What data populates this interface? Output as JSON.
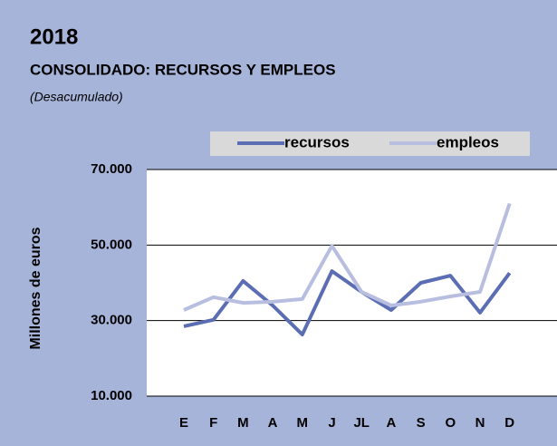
{
  "chart_data": {
    "type": "line",
    "title": "2018",
    "subtitle": "CONSOLIDADO: RECURSOS Y EMPLEOS",
    "note": "(Desacumulado)",
    "y_label": "Millones de euros",
    "categories": [
      "E",
      "F",
      "M",
      "A",
      "M",
      "J",
      "JL",
      "A",
      "S",
      "O",
      "N",
      "D"
    ],
    "series": [
      {
        "name": "recursos",
        "color": "#5b6db3",
        "values": [
          28500,
          30200,
          40500,
          34000,
          26300,
          43100,
          37600,
          32800,
          40000,
          41900,
          32100,
          42600
        ]
      },
      {
        "name": "empleos",
        "color": "#b7bee0",
        "values": [
          32800,
          36200,
          34700,
          35000,
          35700,
          49800,
          37600,
          34000,
          35000,
          36400,
          37600,
          61000
        ]
      }
    ],
    "ylim": [
      10000,
      70000
    ],
    "yticks": [
      {
        "value": 10000,
        "label": "10.000"
      },
      {
        "value": 30000,
        "label": "30.000"
      },
      {
        "value": 50000,
        "label": "50.000"
      },
      {
        "value": 70000,
        "label": "70.000"
      }
    ],
    "grid": true,
    "legend": "top"
  }
}
